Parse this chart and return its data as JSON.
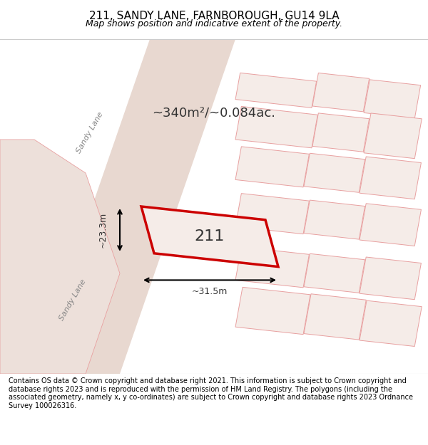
{
  "title": "211, SANDY LANE, FARNBOROUGH, GU14 9LA",
  "subtitle": "Map shows position and indicative extent of the property.",
  "footer": "Contains OS data © Crown copyright and database right 2021. This information is subject to Crown copyright and database rights 2023 and is reproduced with the permission of HM Land Registry. The polygons (including the associated geometry, namely x, y co-ordinates) are subject to Crown copyright and database rights 2023 Ordnance Survey 100026316.",
  "background_color": "#f5ece8",
  "map_background": "#f5ece8",
  "highlight_color": "#e8c8c8",
  "property_outline_color": "#cc0000",
  "road_line_color": "#e8a0a0",
  "building_line_color": "#e8a0a0",
  "area_label": "~340m²/~0.084ac.",
  "property_number": "211",
  "dim_width": "~31.5m",
  "dim_height": "~23.3m",
  "road_label_1": "Sandy Lane",
  "road_label_2": "Sandy Lane",
  "title_fontsize": 11,
  "subtitle_fontsize": 9,
  "footer_fontsize": 7
}
